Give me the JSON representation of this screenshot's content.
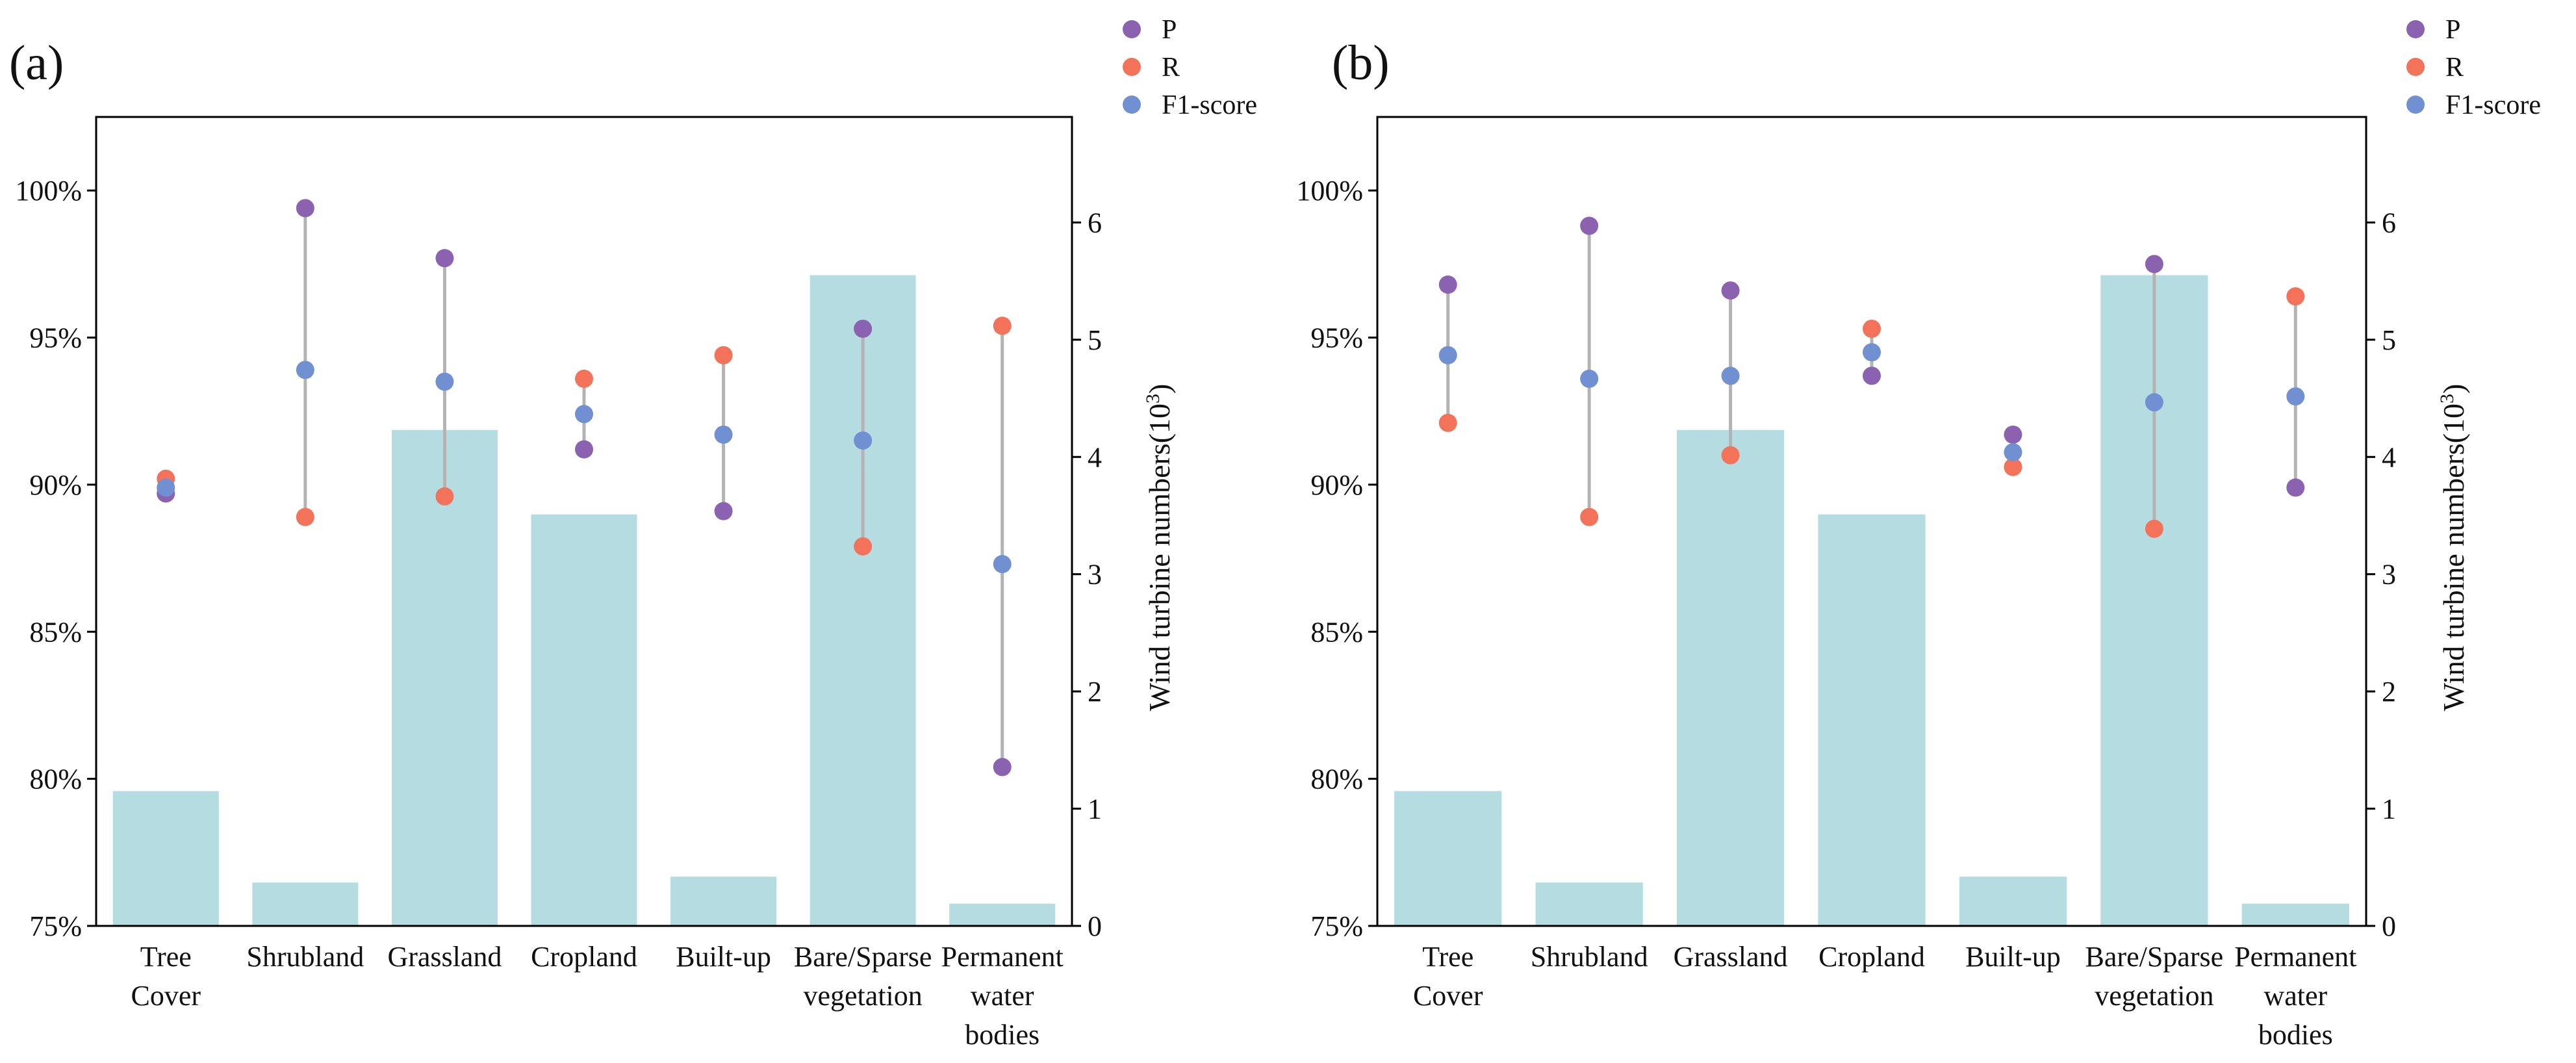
{
  "panels": [
    {
      "label": "(a)",
      "legend": [
        {
          "name": "P",
          "color": "#8b62b0"
        },
        {
          "name": "R",
          "color": "#f2735a"
        },
        {
          "name": "F1-score",
          "color": "#7090d2"
        }
      ],
      "left_ticks": [
        "75%",
        "80%",
        "85%",
        "90%",
        "95%",
        "100%"
      ],
      "right_ticks": [
        "0",
        "1",
        "2",
        "3",
        "4",
        "5",
        "6"
      ],
      "right_axis_title": {
        "main": "Wind turbine numbers(10",
        "sup": "3",
        "close": ")"
      },
      "categories": [
        [
          "Tree",
          "Cover"
        ],
        [
          "Shrubland"
        ],
        [
          "Grassland"
        ],
        [
          "Cropland"
        ],
        [
          "Built-up"
        ],
        [
          "Bare/Sparse",
          "vegetation"
        ],
        [
          "Permanent",
          "water",
          "bodies"
        ]
      ]
    },
    {
      "label": "(b)",
      "legend": [
        {
          "name": "P",
          "color": "#8b62b0"
        },
        {
          "name": "R",
          "color": "#f2735a"
        },
        {
          "name": "F1-score",
          "color": "#7090d2"
        }
      ],
      "left_ticks": [
        "75%",
        "80%",
        "85%",
        "90%",
        "95%",
        "100%"
      ],
      "right_ticks": [
        "0",
        "1",
        "2",
        "3",
        "4",
        "5",
        "6"
      ],
      "right_axis_title": {
        "main": "Wind turbine numbers(10",
        "sup": "3",
        "close": ")"
      },
      "categories": [
        [
          "Tree",
          "Cover"
        ],
        [
          "Shrubland"
        ],
        [
          "Grassland"
        ],
        [
          "Cropland"
        ],
        [
          "Built-up"
        ],
        [
          "Bare/Sparse",
          "vegetation"
        ],
        [
          "Permanent",
          "water",
          "bodies"
        ]
      ]
    }
  ],
  "chart_data": [
    {
      "type": "bar",
      "title": "(a)",
      "categories": [
        "Tree Cover",
        "Shrubland",
        "Grassland",
        "Cropland",
        "Built-up",
        "Bare/Sparse vegetation",
        "Permanent water bodies"
      ],
      "ylabel": "",
      "y2label": "Wind turbine numbers(10^3)",
      "ylim": [
        75,
        102.5
      ],
      "y2lim": [
        0,
        6.9
      ],
      "bar_color": "#b5dde1",
      "series": [
        {
          "name": "Wind turbine numbers",
          "axis": "right",
          "kind": "bar",
          "values": [
            1.15,
            0.37,
            4.23,
            3.51,
            0.42,
            5.55,
            0.19
          ]
        },
        {
          "name": "P",
          "axis": "left",
          "kind": "scatter",
          "color": "#8b62b0",
          "values": [
            89.7,
            99.4,
            97.7,
            91.2,
            89.1,
            95.3,
            80.4
          ]
        },
        {
          "name": "R",
          "axis": "left",
          "kind": "scatter",
          "color": "#f2735a",
          "values": [
            90.2,
            88.9,
            89.6,
            93.6,
            94.4,
            87.9,
            95.4
          ]
        },
        {
          "name": "F1-score",
          "axis": "left",
          "kind": "scatter",
          "color": "#7090d2",
          "values": [
            89.9,
            93.9,
            93.5,
            92.4,
            91.7,
            91.5,
            87.3
          ]
        }
      ],
      "legend_position": "top-right"
    },
    {
      "type": "bar",
      "title": "(b)",
      "categories": [
        "Tree Cover",
        "Shrubland",
        "Grassland",
        "Cropland",
        "Built-up",
        "Bare/Sparse vegetation",
        "Permanent water bodies"
      ],
      "ylabel": "",
      "y2label": "Wind turbine numbers(10^3)",
      "ylim": [
        75,
        102.5
      ],
      "y2lim": [
        0,
        6.9
      ],
      "bar_color": "#b5dde1",
      "series": [
        {
          "name": "Wind turbine numbers",
          "axis": "right",
          "kind": "bar",
          "values": [
            1.15,
            0.37,
            4.23,
            3.51,
            0.42,
            5.55,
            0.19
          ]
        },
        {
          "name": "P",
          "axis": "left",
          "kind": "scatter",
          "color": "#8b62b0",
          "values": [
            96.8,
            98.8,
            96.6,
            93.7,
            91.7,
            97.5,
            89.9
          ]
        },
        {
          "name": "R",
          "axis": "left",
          "kind": "scatter",
          "color": "#f2735a",
          "values": [
            92.1,
            88.9,
            91.0,
            95.3,
            90.6,
            88.5,
            96.4
          ]
        },
        {
          "name": "F1-score",
          "axis": "left",
          "kind": "scatter",
          "color": "#7090d2",
          "values": [
            94.4,
            93.6,
            93.7,
            94.5,
            91.1,
            92.8,
            93.0
          ]
        }
      ],
      "legend_position": "top-right"
    }
  ]
}
